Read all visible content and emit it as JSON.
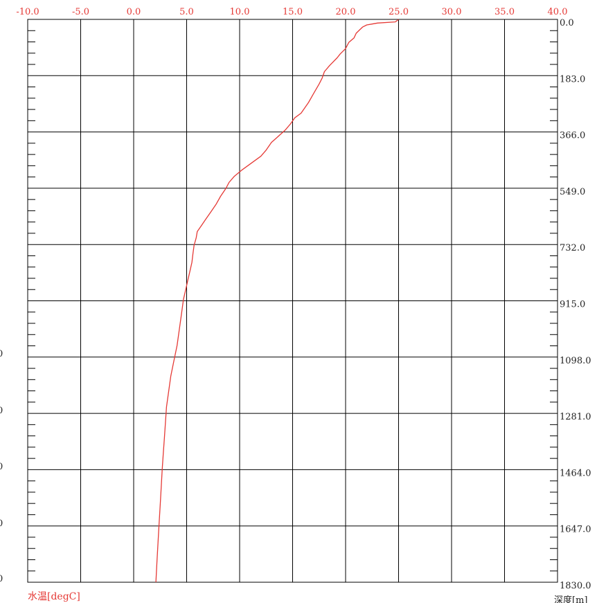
{
  "chart_data": {
    "type": "line",
    "x_axis": {
      "position": "top",
      "range": [
        -10,
        40
      ],
      "ticks": [
        "-10.0",
        "-5.0",
        "0.0",
        "5.0",
        "10.0",
        "15.0",
        "20.0",
        "25.0",
        "30.0",
        "35.0",
        "40.0"
      ],
      "label": "水温[degC]",
      "color": "#e53935"
    },
    "y_axis": {
      "position": "right",
      "range": [
        0,
        1830
      ],
      "inverted": true,
      "ticks": [
        "0.0",
        "183.0",
        "366.0",
        "549.0",
        "732.0",
        "915.0",
        "1098.0",
        "1281.0",
        "1464.0",
        "1647.0",
        "1830.0"
      ],
      "label": "深度[m]",
      "minor_ticks_per_interval": 5
    },
    "left_cut_labels": [
      "0",
      "0",
      "0",
      "0",
      "0"
    ],
    "grid": true,
    "series": [
      {
        "color": "#e53935",
        "points": [
          [
            25.0,
            0
          ],
          [
            24.7,
            8
          ],
          [
            23.0,
            12
          ],
          [
            22.5,
            15
          ],
          [
            22.0,
            18
          ],
          [
            21.6,
            25
          ],
          [
            21.3,
            35
          ],
          [
            21.0,
            45
          ],
          [
            20.8,
            60
          ],
          [
            20.3,
            75
          ],
          [
            20.0,
            95
          ],
          [
            19.5,
            112
          ],
          [
            19.2,
            125
          ],
          [
            18.5,
            150
          ],
          [
            18.0,
            170
          ],
          [
            17.8,
            190
          ],
          [
            17.5,
            210
          ],
          [
            17.0,
            240
          ],
          [
            16.5,
            270
          ],
          [
            15.8,
            305
          ],
          [
            15.2,
            320
          ],
          [
            14.8,
            340
          ],
          [
            14.3,
            360
          ],
          [
            13.5,
            385
          ],
          [
            13.0,
            400
          ],
          [
            12.5,
            425
          ],
          [
            12.0,
            445
          ],
          [
            11.0,
            470
          ],
          [
            10.2,
            490
          ],
          [
            9.5,
            510
          ],
          [
            9.0,
            530
          ],
          [
            8.7,
            550
          ],
          [
            8.2,
            575
          ],
          [
            7.8,
            600
          ],
          [
            7.3,
            625
          ],
          [
            6.8,
            650
          ],
          [
            6.4,
            670
          ],
          [
            6.0,
            690
          ],
          [
            5.9,
            710
          ],
          [
            5.7,
            735
          ],
          [
            5.6,
            760
          ],
          [
            5.5,
            790
          ],
          [
            5.3,
            820
          ],
          [
            5.1,
            850
          ],
          [
            4.9,
            880
          ],
          [
            4.7,
            910
          ],
          [
            4.5,
            960
          ],
          [
            4.3,
            1010
          ],
          [
            4.1,
            1060
          ],
          [
            3.8,
            1110
          ],
          [
            3.5,
            1160
          ],
          [
            3.3,
            1210
          ],
          [
            3.1,
            1260
          ],
          [
            3.0,
            1310
          ],
          [
            2.9,
            1360
          ],
          [
            2.8,
            1410
          ],
          [
            2.7,
            1460
          ],
          [
            2.6,
            1520
          ],
          [
            2.5,
            1580
          ],
          [
            2.4,
            1640
          ],
          [
            2.3,
            1700
          ],
          [
            2.2,
            1760
          ],
          [
            2.1,
            1830
          ]
        ]
      }
    ]
  }
}
